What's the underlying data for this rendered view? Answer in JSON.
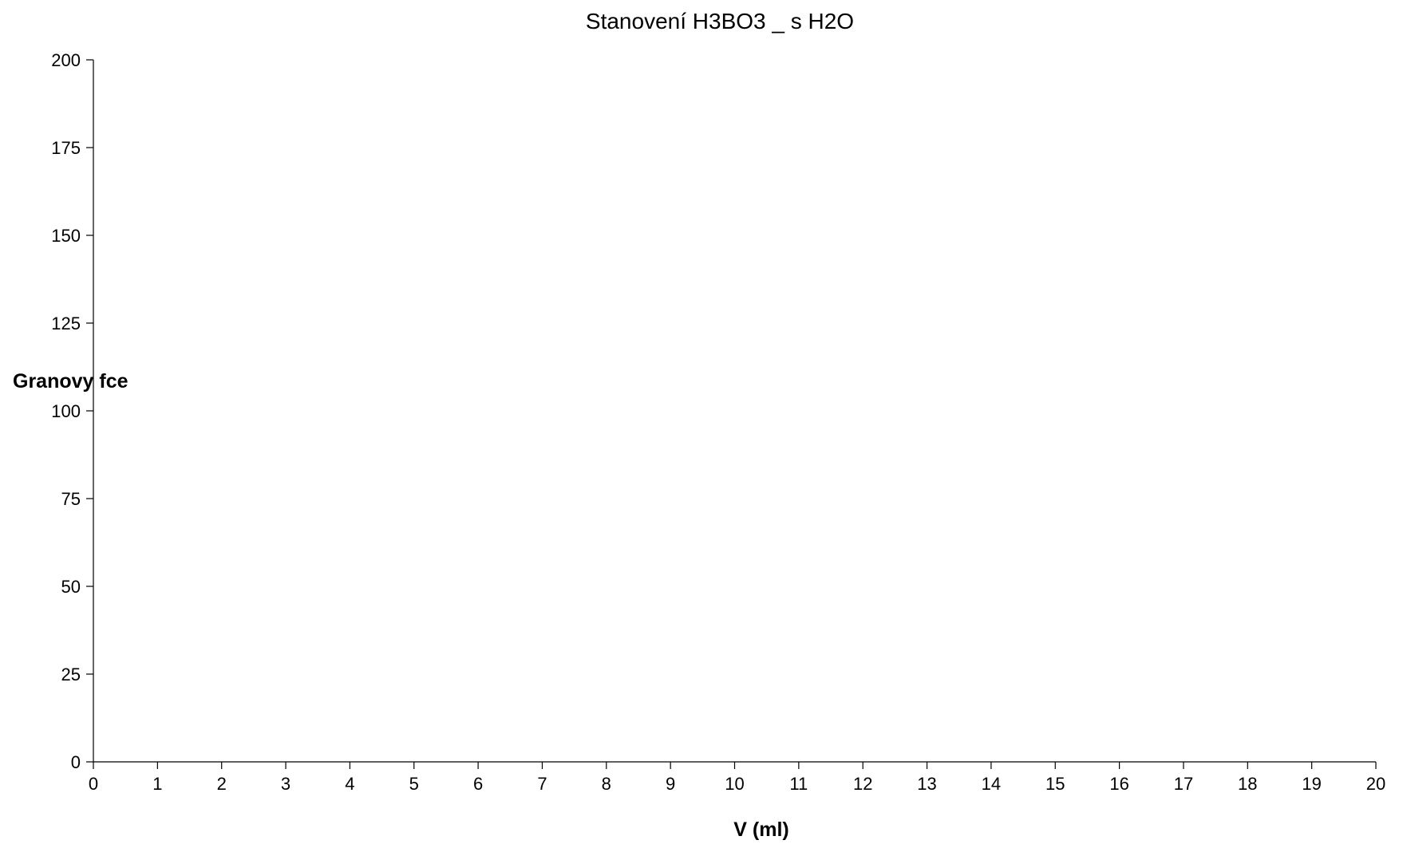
{
  "chart_data": {
    "type": "scatter",
    "title": "Stanovení H3BO3 _ s H2O",
    "xlabel": "V (ml)",
    "ylabel": "Granovy fce",
    "xlim": [
      0,
      20
    ],
    "ylim": [
      0,
      200
    ],
    "x_ticks": [
      "0",
      "1",
      "2",
      "3",
      "4",
      "5",
      "6",
      "7",
      "8",
      "9",
      "10",
      "11",
      "12",
      "13",
      "14",
      "15",
      "16",
      "17",
      "18",
      "19",
      "20"
    ],
    "y_ticks": [
      "0",
      "25",
      "50",
      "75",
      "100",
      "125",
      "150",
      "175",
      "200"
    ],
    "grid": false,
    "legend": "none",
    "series": []
  },
  "colors": {
    "axis": "#000000",
    "background": "#ffffff"
  }
}
